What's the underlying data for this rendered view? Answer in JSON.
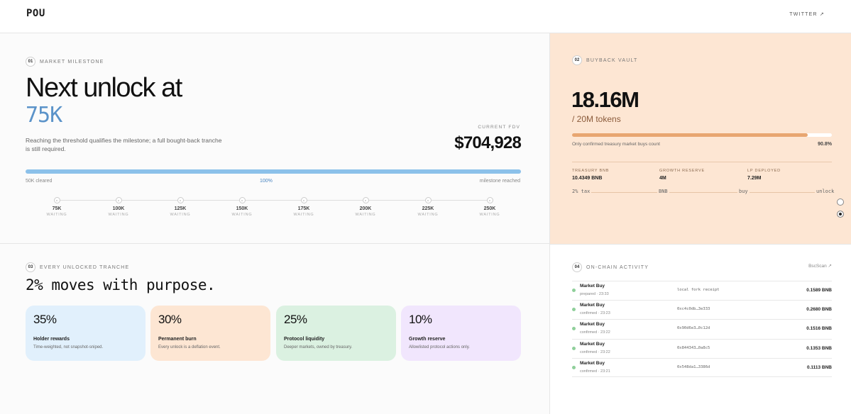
{
  "header": {
    "logo": "POU",
    "twitter": "TWITTER ↗"
  },
  "milestone": {
    "num": "01",
    "title": "MARKET MILESTONE",
    "heading": "Next unlock at",
    "target": "75K",
    "description": "Reaching the threshold qualifies the milestone; a full bought-back tranche is still required.",
    "fdv_label": "CURRENT FDV",
    "fdv_value": "$704,928",
    "progress": {
      "fraction": 1.0,
      "left": "50K cleared",
      "center": "100%",
      "right": "milestone reached"
    },
    "steps": [
      {
        "value": "75K",
        "status": "WAITING"
      },
      {
        "value": "100K",
        "status": "WAITING"
      },
      {
        "value": "125K",
        "status": "WAITING"
      },
      {
        "value": "150K",
        "status": "WAITING"
      },
      {
        "value": "175K",
        "status": "WAITING"
      },
      {
        "value": "200K",
        "status": "WAITING"
      },
      {
        "value": "225K",
        "status": "WAITING"
      },
      {
        "value": "250K",
        "status": "WAITING"
      }
    ]
  },
  "vault": {
    "num": "02",
    "title": "BUYBACK VAULT",
    "amount": "18.16M",
    "of": "/ 20M tokens",
    "progress": 0.908,
    "note": "Only confirmed treasury market buys count",
    "pct": "90.8%",
    "stats": [
      {
        "label": "TREASURY BNB",
        "value": "10.4349 BNB"
      },
      {
        "label": "GROWTH RESERVE",
        "value": "4M"
      },
      {
        "label": "LP DEPLOYED",
        "value": "7.29M"
      }
    ],
    "flow": [
      "2% tax",
      "BNB",
      "buy",
      "unlock"
    ]
  },
  "tranche": {
    "num": "03",
    "title": "EVERY UNLOCKED TRANCHE",
    "heading": "2% moves with purpose.",
    "cards": [
      {
        "pct": "35%",
        "title": "Holder rewards",
        "desc": "Time-weighted, not snapshot-sniped.",
        "color": "#e1f0fc"
      },
      {
        "pct": "30%",
        "title": "Permanent burn",
        "desc": "Every unlock is a deflation event.",
        "color": "#fde6d3"
      },
      {
        "pct": "25%",
        "title": "Protocol liquidity",
        "desc": "Deeper markets, owned by treasury.",
        "color": "#dbf1e1"
      },
      {
        "pct": "10%",
        "title": "Growth reserve",
        "desc": "Allowlisted protocol actions only.",
        "color": "#f1e6fd"
      }
    ]
  },
  "activity": {
    "num": "04",
    "title": "ON-CHAIN ACTIVITY",
    "link": "BscScan ↗",
    "rows": [
      {
        "name": "Market Buy",
        "meta": "prepared · 23:33",
        "hash": "local fork receipt",
        "amount": "0.1589 BNB"
      },
      {
        "name": "Market Buy",
        "meta": "confirmed · 23:23",
        "hash": "0xc4c0db…3e333",
        "amount": "0.2680 BNB"
      },
      {
        "name": "Market Buy",
        "meta": "confirmed · 23:22",
        "hash": "0x90d6e3…0c12d",
        "amount": "0.1516 BNB"
      },
      {
        "name": "Market Buy",
        "meta": "confirmed · 23:22",
        "hash": "0x844343…0a8c5",
        "amount": "0.1353 BNB"
      },
      {
        "name": "Market Buy",
        "meta": "confirmed · 23:21",
        "hash": "0x548da1…3386d",
        "amount": "0.1113 BNB"
      }
    ]
  }
}
